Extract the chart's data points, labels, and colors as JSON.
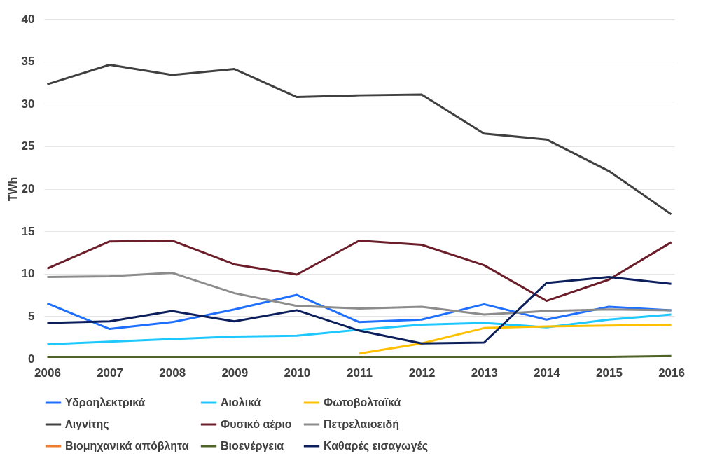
{
  "chart_data": {
    "type": "line",
    "ylabel": "TWh",
    "categories": [
      "2006",
      "2007",
      "2008",
      "2009",
      "2010",
      "2011",
      "2012",
      "2013",
      "2014",
      "2015",
      "2016"
    ],
    "ylim": [
      0,
      40
    ],
    "yticks": [
      0,
      5,
      10,
      15,
      20,
      25,
      30,
      35,
      40
    ],
    "grid": "y",
    "legend": "bottom",
    "marker": "none",
    "line_style": "solid",
    "series": [
      {
        "name": "Υδροηλεκτρικά",
        "color": "#1f6fff",
        "values": [
          6.5,
          3.5,
          4.3,
          5.8,
          7.5,
          4.3,
          4.6,
          6.4,
          4.6,
          6.1,
          5.7
        ]
      },
      {
        "name": "Αιολικά",
        "color": "#1ec8ff",
        "values": [
          1.7,
          2.0,
          2.3,
          2.6,
          2.7,
          3.4,
          4.0,
          4.2,
          3.7,
          4.6,
          5.2
        ]
      },
      {
        "name": "Φωτοβολταϊκά",
        "color": "#ffc000",
        "values": [
          null,
          null,
          null,
          null,
          null,
          0.6,
          1.8,
          3.6,
          3.8,
          3.9,
          4.0
        ]
      },
      {
        "name": "Λιγνίτης",
        "color": "#404040",
        "values": [
          32.3,
          34.6,
          33.4,
          34.1,
          30.8,
          31.0,
          31.1,
          26.5,
          25.8,
          22.1,
          17.0
        ]
      },
      {
        "name": "Φυσικό αέριο",
        "color": "#6b1e2a",
        "values": [
          10.6,
          13.8,
          13.9,
          11.1,
          9.9,
          13.9,
          13.4,
          11.0,
          6.8,
          9.3,
          13.7
        ]
      },
      {
        "name": "Πετρελαιοειδή",
        "color": "#8c8c8c",
        "values": [
          9.6,
          9.7,
          10.1,
          7.7,
          6.2,
          5.9,
          6.1,
          5.2,
          5.6,
          5.8,
          5.7
        ]
      },
      {
        "name": "Βιομηχανικά απόβλητα",
        "color": "#ed7d31",
        "values": [
          null,
          null,
          null,
          null,
          null,
          null,
          null,
          null,
          null,
          null,
          null
        ]
      },
      {
        "name": "Βιοενέργεια",
        "color": "#4f6228",
        "values": [
          0.2,
          0.2,
          0.2,
          0.2,
          0.2,
          0.2,
          0.2,
          0.2,
          0.2,
          0.2,
          0.3
        ]
      },
      {
        "name": "Καθαρές εισαγωγές",
        "color": "#0c1f5c",
        "values": [
          4.2,
          4.4,
          5.6,
          4.4,
          5.7,
          3.3,
          1.8,
          1.9,
          8.9,
          9.6,
          8.8
        ]
      }
    ]
  }
}
